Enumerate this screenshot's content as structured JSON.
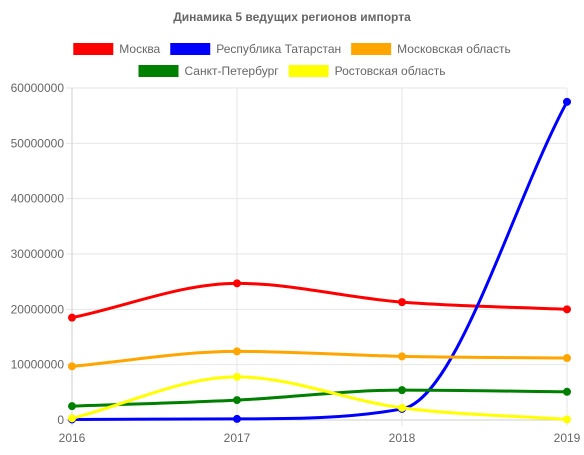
{
  "chart_data": {
    "type": "line",
    "title": "Динамика 5 ведущих регионов импорта",
    "xlabel": "",
    "ylabel": "",
    "categories": [
      "2016",
      "2017",
      "2018",
      "2019"
    ],
    "ylim": [
      0,
      60000000
    ],
    "yticks": [
      "0",
      "10000000",
      "20000000",
      "30000000",
      "40000000",
      "50000000",
      "60000000"
    ],
    "grid": true,
    "legend_position": "top",
    "series": [
      {
        "name": "Москва",
        "color": "#ff0000",
        "values": [
          18500000,
          24700000,
          21300000,
          20000000
        ]
      },
      {
        "name": "Республика Татарстан",
        "color": "#0000ff",
        "values": [
          100000,
          200000,
          2000000,
          57500000
        ]
      },
      {
        "name": "Московская область",
        "color": "#ffa500",
        "values": [
          9700000,
          12400000,
          11500000,
          11200000
        ]
      },
      {
        "name": "Санкт-Петербург",
        "color": "#008000",
        "values": [
          2500000,
          3600000,
          5400000,
          5100000
        ]
      },
      {
        "name": "Ростовская область",
        "color": "#ffff00",
        "values": [
          300000,
          7800000,
          2200000,
          100000
        ]
      }
    ]
  }
}
